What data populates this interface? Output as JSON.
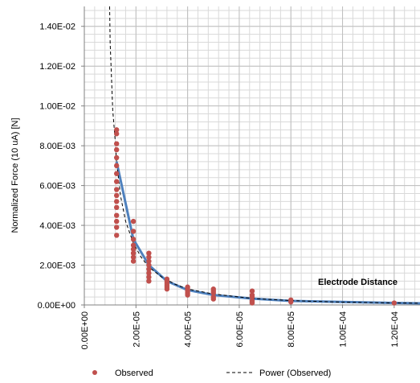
{
  "chart_data": {
    "type": "scatter",
    "title": "",
    "xlabel": "Electrode Distance",
    "ylabel": "Normalized Force (10 uA) [N]",
    "xlim": [
      0,
      0.00013
    ],
    "ylim": [
      0,
      0.015
    ],
    "x_major_step": 2e-05,
    "x_minor_step": 4e-06,
    "y_major_step": 0.002,
    "y_minor_step": 0.0004,
    "x_ticks": [
      0,
      2e-05,
      4e-05,
      6e-05,
      8e-05,
      0.0001,
      0.00012
    ],
    "x_tick_labels": [
      "0.00E+00",
      "2.00E-05",
      "4.00E-05",
      "6.00E-05",
      "8.00E-05",
      "1.00E-04",
      "1.20E-04"
    ],
    "y_ticks": [
      0,
      0.002,
      0.004,
      0.006,
      0.008,
      0.01,
      0.012,
      0.014
    ],
    "y_tick_labels": [
      "0.00E+00",
      "2.00E-03",
      "4.00E-03",
      "6.00E-03",
      "8.00E-03",
      "1.00E-02",
      "1.20E-02",
      "1.40E-02"
    ],
    "grid": true,
    "legend_position": "bottom",
    "colors": {
      "observed": "#c0504d",
      "fit_line": "#4f81bd",
      "power_line": "#000000",
      "grid": "#bfbfbf"
    },
    "series": [
      {
        "name": "Observed",
        "style": "markers",
        "x": [
          1.25e-05,
          1.25e-05,
          1.25e-05,
          1.25e-05,
          1.25e-05,
          1.25e-05,
          1.25e-05,
          1.25e-05,
          1.25e-05,
          1.25e-05,
          1.25e-05,
          1.25e-05,
          1.25e-05,
          1.25e-05,
          1.25e-05,
          1.25e-05,
          1.9e-05,
          1.9e-05,
          1.9e-05,
          1.9e-05,
          1.9e-05,
          1.9e-05,
          1.9e-05,
          1.9e-05,
          2.5e-05,
          2.5e-05,
          2.5e-05,
          2.5e-05,
          2.5e-05,
          2.5e-05,
          2.5e-05,
          2.5e-05,
          3.2e-05,
          3.2e-05,
          3.2e-05,
          3.2e-05,
          3.2e-05,
          3.2e-05,
          4e-05,
          4e-05,
          4e-05,
          4e-05,
          4e-05,
          5e-05,
          5e-05,
          5e-05,
          5e-05,
          5e-05,
          6.5e-05,
          6.5e-05,
          6.5e-05,
          6.5e-05,
          6.5e-05,
          8e-05,
          8e-05,
          0.00012
        ],
        "y": [
          0.0088,
          0.0086,
          0.0081,
          0.0078,
          0.0074,
          0.007,
          0.0066,
          0.0062,
          0.0058,
          0.0055,
          0.0052,
          0.0049,
          0.0045,
          0.0042,
          0.0039,
          0.0035,
          0.0042,
          0.0037,
          0.0033,
          0.003,
          0.0028,
          0.0026,
          0.0024,
          0.0022,
          0.0026,
          0.0024,
          0.0022,
          0.002,
          0.0018,
          0.0016,
          0.0014,
          0.0012,
          0.0013,
          0.0012,
          0.0011,
          0.001,
          0.0009,
          0.0008,
          0.0009,
          0.0008,
          0.0007,
          0.0006,
          0.0005,
          0.0008,
          0.0007,
          0.0006,
          0.0004,
          0.0003,
          0.0007,
          0.0005,
          0.0004,
          0.0002,
          0.0001,
          0.00025,
          0.00015,
          0.0001
        ]
      },
      {
        "name": "",
        "style": "line",
        "x": [
          1.25e-05,
          1.9e-05,
          2.5e-05,
          3.2e-05,
          4e-05,
          5e-05,
          6.5e-05,
          8e-05,
          0.00012,
          0.00013
        ],
        "y": [
          0.0072,
          0.0033,
          0.002,
          0.0012,
          0.00075,
          0.0005,
          0.00032,
          0.0002,
          0.0001,
          8e-05
        ]
      },
      {
        "name": "Power (Observed)",
        "style": "dashed",
        "x": [
          9.8e-06,
          1e-05,
          1.1e-05,
          1.2e-05,
          1.25e-05,
          1.4e-05,
          1.6e-05,
          1.9e-05,
          2.2e-05,
          2.5e-05,
          3e-05,
          3.5e-05,
          4e-05,
          5e-05,
          6.5e-05,
          8e-05,
          0.0001,
          0.00012,
          0.00013
        ],
        "y": [
          0.015,
          0.0132,
          0.0098,
          0.0082,
          0.0072,
          0.0055,
          0.0042,
          0.0031,
          0.0024,
          0.0019,
          0.0014,
          0.00105,
          0.0008,
          0.00055,
          0.00033,
          0.00022,
          0.00014,
          0.0001,
          9e-05
        ]
      }
    ]
  }
}
